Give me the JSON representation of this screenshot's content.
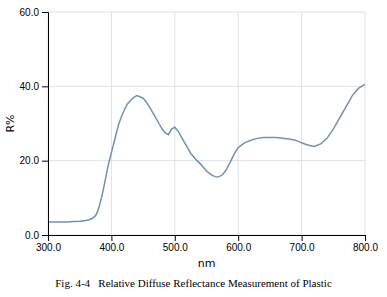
{
  "chart_data": {
    "type": "line",
    "title": "Fig. 4-4   Relative Diffuse Reflectance Measurement of Plastic",
    "xlabel": "nm",
    "ylabel": "R%",
    "xlim": [
      300.0,
      800.0
    ],
    "ylim": [
      0.0,
      60.0
    ],
    "xticks": [
      {
        "value": 300.0,
        "label": "300.0"
      },
      {
        "value": 400.0,
        "label": "400.0"
      },
      {
        "value": 500.0,
        "label": "500.0"
      },
      {
        "value": 600.0,
        "label": "600.0"
      },
      {
        "value": 700.0,
        "label": "700.0"
      },
      {
        "value": 800.0,
        "label": "800.0"
      }
    ],
    "yticks": [
      {
        "value": 0.0,
        "label": "0.0"
      },
      {
        "value": 20.0,
        "label": "20.0"
      },
      {
        "value": 40.0,
        "label": "40.0"
      },
      {
        "value": 60.0,
        "label": "60.0"
      }
    ],
    "grid": true,
    "color": "#7090b8",
    "x": [
      300,
      310,
      320,
      330,
      340,
      350,
      360,
      365,
      370,
      375,
      378,
      381,
      384,
      387,
      390,
      393,
      396,
      399,
      402,
      405,
      408,
      411,
      415,
      420,
      425,
      430,
      435,
      440,
      445,
      450,
      455,
      460,
      465,
      470,
      475,
      480,
      485,
      490,
      495,
      500,
      505,
      510,
      515,
      520,
      525,
      530,
      535,
      540,
      545,
      550,
      555,
      558,
      561,
      564,
      567,
      570,
      575,
      580,
      585,
      590,
      595,
      600,
      605,
      610,
      620,
      630,
      640,
      650,
      660,
      670,
      680,
      690,
      695,
      700,
      705,
      710,
      715,
      720,
      730,
      740,
      750,
      760,
      770,
      780,
      790,
      800
    ],
    "values": [
      3.5,
      3.5,
      3.5,
      3.5,
      3.6,
      3.7,
      3.9,
      4.1,
      4.5,
      5.2,
      6.2,
      7.8,
      9.8,
      12.0,
      14.5,
      17.2,
      19.5,
      21.5,
      23.5,
      25.5,
      27.5,
      29.5,
      31.5,
      33.5,
      35.2,
      36.2,
      37.0,
      37.5,
      37.2,
      36.8,
      35.8,
      34.5,
      33.0,
      31.5,
      30.0,
      28.5,
      27.5,
      27.0,
      28.5,
      29.0,
      28.0,
      26.5,
      25.0,
      23.5,
      22.0,
      21.0,
      20.0,
      19.2,
      18.2,
      17.2,
      16.5,
      16.2,
      15.9,
      15.7,
      15.6,
      15.7,
      16.2,
      17.2,
      18.8,
      20.5,
      22.2,
      23.5,
      24.2,
      24.8,
      25.5,
      26.0,
      26.2,
      26.2,
      26.2,
      26.0,
      25.8,
      25.5,
      25.2,
      24.8,
      24.5,
      24.2,
      24.0,
      23.8,
      24.5,
      26.0,
      28.5,
      31.5,
      34.5,
      37.5,
      39.5,
      40.5
    ]
  }
}
